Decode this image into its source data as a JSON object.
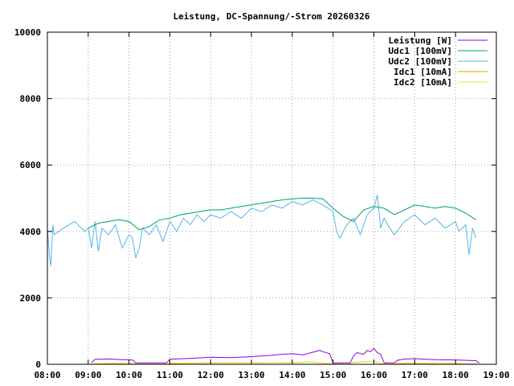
{
  "chart_data": {
    "type": "line",
    "title": "Leistung, DC-Spannung/-Strom 20260326",
    "xlabel": "",
    "ylabel": "",
    "xlim": [
      "08:00",
      "19:00"
    ],
    "ylim": [
      0,
      10000
    ],
    "grid": true,
    "legend_position": "top-right",
    "x_ticks": [
      "08:00",
      "09:00",
      "10:00",
      "11:00",
      "12:00",
      "13:00",
      "14:00",
      "15:00",
      "16:00",
      "17:00",
      "18:00",
      "19:00"
    ],
    "y_ticks": [
      "0",
      "2000",
      "4000",
      "6000",
      "8000",
      "10000"
    ],
    "series": [
      {
        "name": "Leistung [W]",
        "color": "#9400d3",
        "x": [
          "09:05",
          "09:10",
          "09:30",
          "09:50",
          "10:05",
          "10:10",
          "10:55",
          "11:00",
          "11:30",
          "12:00",
          "12:30",
          "13:00",
          "13:30",
          "13:45",
          "14:00",
          "14:15",
          "14:30",
          "14:40",
          "14:45",
          "14:55",
          "15:00",
          "15:25",
          "15:30",
          "15:35",
          "15:45",
          "15:50",
          "15:55",
          "16:00",
          "16:05",
          "16:10",
          "16:15",
          "16:20",
          "16:25",
          "16:30",
          "16:35",
          "16:45",
          "17:00",
          "17:30",
          "18:00",
          "18:30",
          "18:35"
        ],
        "y": [
          50,
          150,
          160,
          140,
          130,
          40,
          40,
          150,
          180,
          210,
          200,
          230,
          270,
          300,
          320,
          280,
          360,
          420,
          380,
          320,
          40,
          40,
          250,
          350,
          300,
          420,
          380,
          480,
          350,
          300,
          40,
          40,
          40,
          40,
          120,
          160,
          170,
          140,
          130,
          110,
          40
        ]
      },
      {
        "name": "Udc1 [100mV]",
        "color": "#009e73",
        "x": [
          "09:00",
          "09:15",
          "09:30",
          "09:45",
          "10:00",
          "10:15",
          "10:30",
          "10:45",
          "11:00",
          "11:15",
          "11:30",
          "11:45",
          "12:00",
          "12:15",
          "12:30",
          "12:45",
          "13:00",
          "13:15",
          "13:30",
          "13:45",
          "14:00",
          "14:15",
          "14:30",
          "14:45",
          "15:00",
          "15:15",
          "15:30",
          "15:45",
          "16:00",
          "16:15",
          "16:30",
          "16:45",
          "17:00",
          "17:15",
          "17:30",
          "17:45",
          "18:00",
          "18:15",
          "18:30"
        ],
        "y": [
          4100,
          4250,
          4300,
          4350,
          4300,
          4050,
          4150,
          4350,
          4400,
          4500,
          4550,
          4600,
          4650,
          4650,
          4700,
          4750,
          4800,
          4850,
          4900,
          4950,
          4980,
          5000,
          5000,
          4980,
          4700,
          4450,
          4300,
          4650,
          4750,
          4700,
          4500,
          4650,
          4800,
          4750,
          4700,
          4750,
          4700,
          4550,
          4350
        ]
      },
      {
        "name": "Udc2 [100mV]",
        "color": "#56b4e9",
        "x": [
          "08:00",
          "08:03",
          "08:05",
          "08:08",
          "08:10",
          "08:20",
          "08:40",
          "08:55",
          "09:00",
          "09:05",
          "09:10",
          "09:15",
          "09:20",
          "09:30",
          "09:40",
          "09:50",
          "10:00",
          "10:05",
          "10:10",
          "10:15",
          "10:20",
          "10:30",
          "10:40",
          "10:50",
          "11:00",
          "11:10",
          "11:20",
          "11:30",
          "11:40",
          "11:50",
          "12:00",
          "12:15",
          "12:30",
          "12:45",
          "13:00",
          "13:15",
          "13:30",
          "13:45",
          "14:00",
          "14:15",
          "14:30",
          "14:45",
          "15:00",
          "15:05",
          "15:10",
          "15:20",
          "15:30",
          "15:40",
          "15:50",
          "16:00",
          "16:05",
          "16:10",
          "16:15",
          "16:20",
          "16:30",
          "16:45",
          "17:00",
          "17:15",
          "17:30",
          "17:45",
          "18:00",
          "18:05",
          "18:15",
          "18:20",
          "18:25",
          "18:30"
        ],
        "y": [
          4100,
          3300,
          2950,
          4200,
          3900,
          4050,
          4300,
          4000,
          4100,
          3500,
          4300,
          3400,
          4100,
          3900,
          4200,
          3500,
          3900,
          3800,
          3200,
          3500,
          4100,
          3900,
          4200,
          3700,
          4300,
          4000,
          4400,
          4200,
          4500,
          4300,
          4500,
          4400,
          4600,
          4400,
          4700,
          4600,
          4800,
          4700,
          4900,
          4800,
          4950,
          4800,
          4600,
          4000,
          3800,
          4200,
          4400,
          3900,
          4500,
          4700,
          5100,
          4100,
          4400,
          4200,
          3900,
          4300,
          4500,
          4200,
          4400,
          4100,
          4300,
          4000,
          4200,
          3300,
          4100,
          3800
        ]
      },
      {
        "name": "Idc1 [10mA]",
        "color": "#e69f00",
        "x": [
          "09:05",
          "09:30",
          "10:05",
          "10:10",
          "10:55",
          "11:00",
          "12:00",
          "13:00",
          "14:00",
          "14:30",
          "15:00",
          "15:25",
          "15:30",
          "16:00",
          "16:15",
          "16:35",
          "17:00",
          "18:00",
          "18:35"
        ],
        "y": [
          10,
          30,
          25,
          5,
          5,
          30,
          40,
          45,
          55,
          70,
          5,
          5,
          60,
          90,
          5,
          30,
          35,
          25,
          5
        ]
      },
      {
        "name": "Idc2 [10mA]",
        "color": "#f0e442",
        "x": [
          "09:05",
          "09:30",
          "10:05",
          "10:10",
          "10:55",
          "11:00",
          "12:00",
          "13:00",
          "14:00",
          "14:30",
          "15:00",
          "15:25",
          "15:30",
          "16:00",
          "16:15",
          "16:35",
          "17:00",
          "18:00",
          "18:35"
        ],
        "y": [
          8,
          25,
          20,
          4,
          4,
          25,
          35,
          40,
          50,
          65,
          4,
          4,
          55,
          85,
          4,
          25,
          30,
          20,
          4
        ]
      }
    ]
  }
}
